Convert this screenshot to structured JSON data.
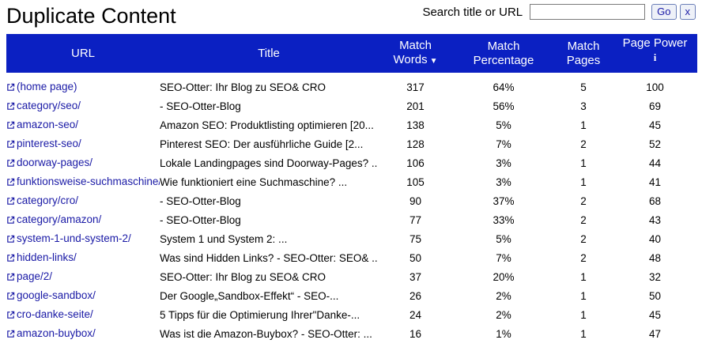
{
  "page_title": "Duplicate Content",
  "search": {
    "label": "Search title or URL",
    "value": "",
    "placeholder": "",
    "go_label": "Go",
    "clear_label": "x"
  },
  "columns": {
    "url": "URL",
    "title": "Title",
    "match_words_1": "Match",
    "match_words_2": "Words",
    "match_percentage_1": "Match",
    "match_percentage_2": "Percentage",
    "match_pages_1": "Match",
    "match_pages_2": "Pages",
    "page_power": "Page Power",
    "page_power_info": "i"
  },
  "rows": [
    {
      "url": "(home page)",
      "title": "SEO-Otter: Ihr Blog zu SEO& CRO",
      "words": "317",
      "percentage": "64%",
      "pages": "5",
      "power": "100"
    },
    {
      "url": "category/seo/",
      "title": "- SEO-Otter-Blog",
      "words": "201",
      "percentage": "56%",
      "pages": "3",
      "power": "69"
    },
    {
      "url": "amazon-seo/",
      "title": "Amazon SEO: Produktlisting optimieren [20...",
      "words": "138",
      "percentage": "5%",
      "pages": "1",
      "power": "45"
    },
    {
      "url": "pinterest-seo/",
      "title": "Pinterest SEO: Der ausführliche Guide [2...",
      "words": "128",
      "percentage": "7%",
      "pages": "2",
      "power": "52"
    },
    {
      "url": "doorway-pages/",
      "title": "Lokale Landingpages sind Doorway-Pages? ...",
      "words": "106",
      "percentage": "3%",
      "pages": "1",
      "power": "44"
    },
    {
      "url": "funktionsweise-suchmaschine/",
      "title": "Wie funktioniert eine Suchmaschine? ...",
      "words": "105",
      "percentage": "3%",
      "pages": "1",
      "power": "41"
    },
    {
      "url": "category/cro/",
      "title": "- SEO-Otter-Blog",
      "words": "90",
      "percentage": "37%",
      "pages": "2",
      "power": "68"
    },
    {
      "url": "category/amazon/",
      "title": "- SEO-Otter-Blog",
      "words": "77",
      "percentage": "33%",
      "pages": "2",
      "power": "43"
    },
    {
      "url": "system-1-und-system-2/",
      "title": "System 1 und System 2: ...",
      "words": "75",
      "percentage": "5%",
      "pages": "2",
      "power": "40"
    },
    {
      "url": "hidden-links/",
      "title": "Was sind Hidden Links? - SEO-Otter: SEO& ...",
      "words": "50",
      "percentage": "7%",
      "pages": "2",
      "power": "48"
    },
    {
      "url": "page/2/",
      "title": "SEO-Otter: Ihr Blog zu SEO& CRO",
      "words": "37",
      "percentage": "20%",
      "pages": "1",
      "power": "32"
    },
    {
      "url": "google-sandbox/",
      "title": "Der Google„Sandbox-Effekt“ - SEO-...",
      "words": "26",
      "percentage": "2%",
      "pages": "1",
      "power": "50"
    },
    {
      "url": "cro-danke-seite/",
      "title": "5 Tipps für die Optimierung Ihrer\"Danke-...",
      "words": "24",
      "percentage": "2%",
      "pages": "1",
      "power": "45"
    },
    {
      "url": "amazon-buybox/",
      "title": "Was ist die Amazon-Buybox? - SEO-Otter: ...",
      "words": "16",
      "percentage": "1%",
      "pages": "1",
      "power": "47"
    }
  ],
  "colors": {
    "header_bg": "#0b20c2",
    "link": "#1a1aa6"
  },
  "icons": {
    "url_link": "external-link-icon",
    "sort": "sort-desc-icon",
    "info": "info-icon"
  }
}
